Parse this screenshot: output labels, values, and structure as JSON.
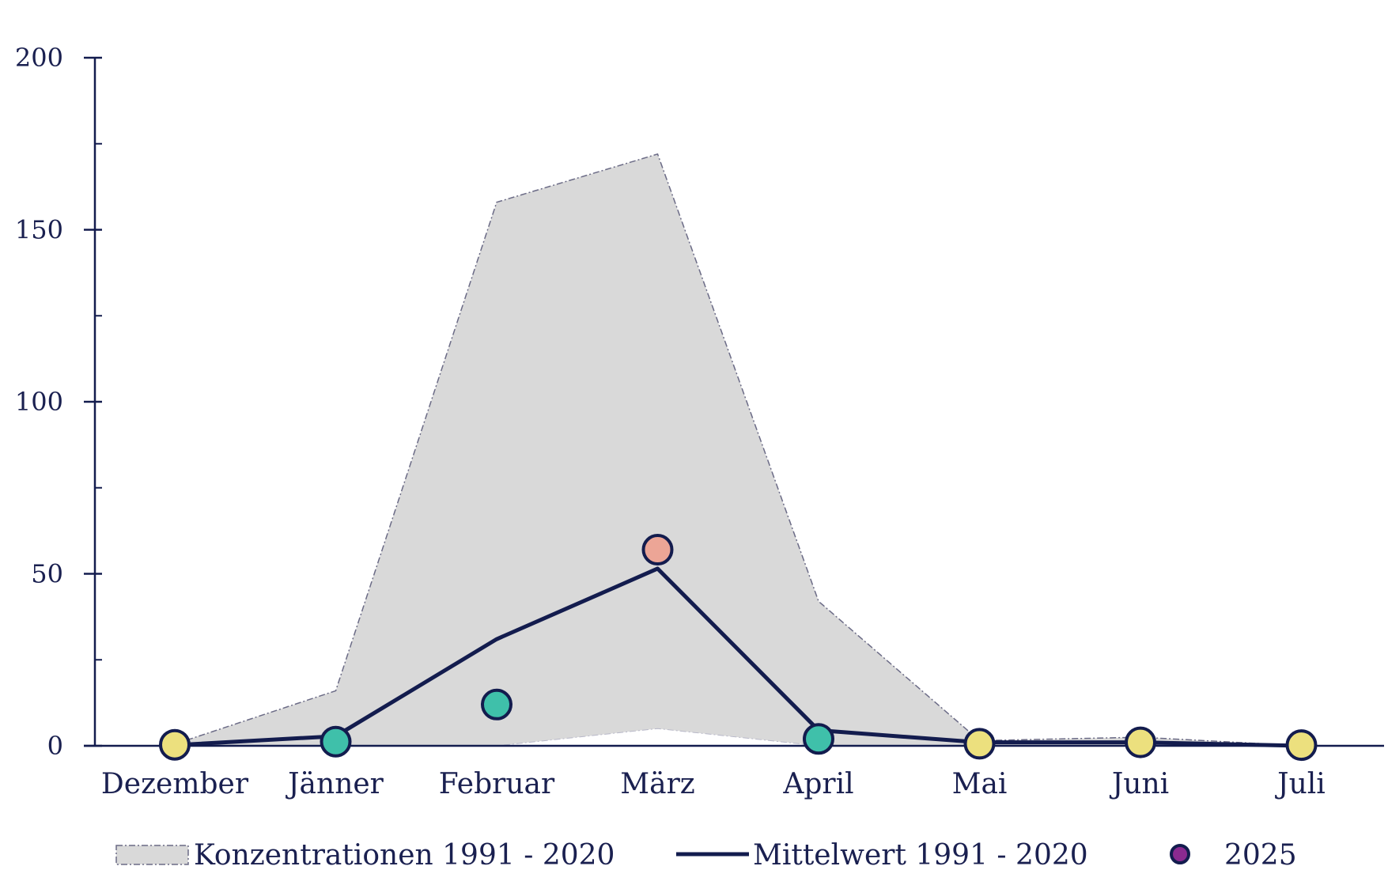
{
  "chart_data": {
    "type": "line",
    "categories": [
      "Dezember",
      "Jänner",
      "Februar",
      "März",
      "April",
      "Mai",
      "Juni",
      "Juli"
    ],
    "ylim": [
      0,
      200
    ],
    "yticks": [
      0,
      50,
      100,
      150,
      200
    ],
    "yticks_minor": [
      25,
      75,
      125,
      175
    ],
    "ytick_labels": [
      "0",
      "50",
      "100",
      "150",
      "200"
    ],
    "band": {
      "name": "Konzentrationen 1991 - 2020",
      "upper": [
        0.5,
        16,
        158,
        172,
        42,
        1.5,
        2.5,
        0
      ],
      "lower": [
        0,
        0,
        0,
        5,
        0,
        0,
        0,
        0
      ],
      "fill": "#d9d9d9",
      "stroke": "#6b6b86"
    },
    "series": [
      {
        "name": "Mittelwert 1991 - 2020",
        "values": [
          0.2,
          2.8,
          31,
          51.5,
          4.5,
          1,
          1,
          0
        ],
        "color": "#131c4e"
      }
    ],
    "points": {
      "name": "2025",
      "values": [
        0.3,
        1.2,
        12,
        57,
        2,
        0.6,
        1,
        0.2
      ],
      "colors": [
        "#ece07e",
        "#3fc0aa",
        "#3fc0aa",
        "#eca596",
        "#3fc0aa",
        "#ece07e",
        "#ece07e",
        "#ece07e"
      ],
      "stroke": "#131c4e",
      "legend_color": "#8a2a90"
    },
    "legend": {
      "position": "bottom",
      "entries": [
        "Konzentrationen 1991 - 2020",
        "Mittelwert 1991 - 2020",
        "2025"
      ]
    },
    "axis_color": "#131c4e",
    "text_color": "#1a2050",
    "title": "",
    "xlabel": "",
    "ylabel": "",
    "grid": false
  }
}
